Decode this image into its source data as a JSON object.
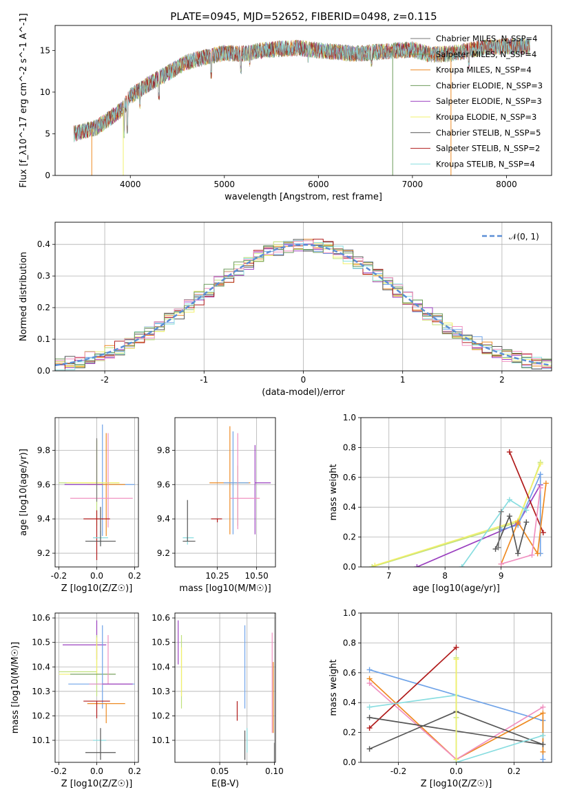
{
  "figure": {
    "title": "PLATE=0945, MJD=52652, FIBERID=0498, z=0.115"
  },
  "colors": {
    "c1": "#6fa3e8",
    "c2": "#ee8a22",
    "c3": "#bfe07a",
    "c4": "#9a3fbf",
    "c5": "#f2f06b",
    "c6": "#555555",
    "c7": "#b01a1a",
    "c8": "#88dde0",
    "c9": "#f090c0",
    "c10": "#6b9a5a",
    "c11": "#777777",
    "norm": "#5b8ed6",
    "grid": "#b0b0b0"
  },
  "chart_data": [
    {
      "id": "spectrum",
      "type": "line",
      "xlabel": "wavelength [Angstrom, rest frame]",
      "ylabel": "Flux [f_λ10^-17 erg cm^-2 s^-1 A^-1]",
      "xlim": [
        3200,
        8480
      ],
      "ylim": [
        0,
        18
      ],
      "xticks": [
        4000,
        5000,
        6000,
        7000,
        8000
      ],
      "yticks": [
        0,
        5,
        10,
        15
      ],
      "grid": false,
      "legend_position": "right",
      "legend": [
        {
          "name": "Chabrier MILES, N_SSP=4",
          "color_key": "c11"
        },
        {
          "name": "Salpeter MILES, N_SSP=4",
          "color_key": "c10"
        },
        {
          "name": "Kroupa MILES, N_SSP=4",
          "color_key": "c2"
        },
        {
          "name": "Chabrier ELODIE, N_SSP=3",
          "color_key": "c10"
        },
        {
          "name": "Salpeter ELODIE, N_SSP=3",
          "color_key": "c4"
        },
        {
          "name": "Kroupa ELODIE, N_SSP=3",
          "color_key": "c5"
        },
        {
          "name": "Chabrier STELIB, N_SSP=5",
          "color_key": "c6"
        },
        {
          "name": "Salpeter STELIB, N_SSP=2",
          "color_key": "c7"
        },
        {
          "name": "Kroupa STELIB, N_SSP=4",
          "color_key": "c8"
        }
      ],
      "continuum_points": [
        [
          3400,
          5.0
        ],
        [
          3500,
          5.3
        ],
        [
          3650,
          5.8
        ],
        [
          3800,
          7.0
        ],
        [
          3920,
          8.0
        ],
        [
          4000,
          9.5
        ],
        [
          4200,
          11.0
        ],
        [
          4400,
          12.3
        ],
        [
          4600,
          13.6
        ],
        [
          4800,
          14.2
        ],
        [
          5000,
          14.7
        ],
        [
          5200,
          14.6
        ],
        [
          5400,
          15.0
        ],
        [
          5600,
          15.2
        ],
        [
          5800,
          15.3
        ],
        [
          6000,
          15.0
        ],
        [
          6200,
          14.8
        ],
        [
          6400,
          14.6
        ],
        [
          6600,
          14.8
        ],
        [
          6800,
          15.0
        ],
        [
          7000,
          15.1
        ],
        [
          7200,
          14.5
        ],
        [
          7400,
          14.6
        ],
        [
          7600,
          15.0
        ],
        [
          7800,
          15.4
        ],
        [
          8000,
          15.5
        ],
        [
          8250,
          15.5
        ]
      ],
      "absorption_features": [
        [
          3934,
          4.5
        ],
        [
          3969,
          5.0
        ],
        [
          4102,
          8.0
        ],
        [
          4304,
          9.0
        ],
        [
          4861,
          11.6
        ],
        [
          5175,
          12.2
        ],
        [
          5270,
          13.0
        ],
        [
          5890,
          13.5
        ],
        [
          6563,
          13.0
        ],
        [
          7600,
          12.8
        ]
      ]
    },
    {
      "id": "residual-histogram",
      "type": "area",
      "xlabel": "(data-model)/error",
      "ylabel": "Normed distribution",
      "xlim": [
        -2.5,
        2.5
      ],
      "ylim": [
        0,
        0.47
      ],
      "xticks": [
        -2,
        -1,
        0,
        1,
        2
      ],
      "yticks": [
        0.0,
        0.1,
        0.2,
        0.3,
        0.4
      ],
      "grid": true,
      "legend": [
        {
          "name": "𝒩(0, 1)",
          "color_key": "norm"
        }
      ],
      "legend_position": "top-right"
    },
    {
      "id": "age-vs-Z",
      "type": "scatter",
      "xlabel": "Z [log10(Z/Z☉)]",
      "ylabel": "age  [log10(age/yr)]",
      "xlim": [
        -0.22,
        0.22
      ],
      "ylim": [
        9.12,
        9.99
      ],
      "xticks": [
        -0.2,
        0.0,
        0.2
      ],
      "yticks": [
        9.2,
        9.4,
        9.6,
        9.8
      ],
      "grid": true,
      "points": [
        {
          "x": 0.03,
          "y": 9.6,
          "xerr": [
            0.2,
            0.17
          ],
          "yerr": [
            0.3,
            0.35
          ],
          "c": "c1"
        },
        {
          "x": 0.05,
          "y": 9.6,
          "xerr": [
            0.1,
            0.1
          ],
          "yerr": [
            0.3,
            0.3
          ],
          "c": "c2"
        },
        {
          "x": 0.0,
          "y": 9.61,
          "xerr": [
            0.2,
            0.12
          ],
          "yerr": [
            0.25,
            0.25
          ],
          "c": "c3"
        },
        {
          "x": 0.0,
          "y": 9.61,
          "xerr": [
            0.16,
            0.12
          ],
          "yerr": [
            0.0,
            0.25
          ],
          "c": "c5"
        },
        {
          "x": 0.03,
          "y": 9.6,
          "xerr": [
            0.2,
            0.0
          ],
          "yerr": [
            0.0,
            0.0
          ],
          "c": "c4"
        },
        {
          "x": 0.06,
          "y": 9.52,
          "xerr": [
            0.2,
            0.13
          ],
          "yerr": [
            0.17,
            0.38
          ],
          "c": "c9"
        },
        {
          "x": 0.0,
          "y": 9.4,
          "xerr": [
            0.07,
            0.07
          ],
          "yerr": [
            0.24,
            0.05
          ],
          "c": "c7"
        },
        {
          "x": 0.02,
          "y": 9.29,
          "xerr": [
            0.04,
            0.04
          ],
          "yerr": [
            0.04,
            0.04
          ],
          "c": "c8"
        },
        {
          "x": 0.02,
          "y": 9.27,
          "xerr": [
            0.08,
            0.08
          ],
          "yerr": [
            0.03,
            0.2
          ],
          "c": "c6"
        },
        {
          "x": 0.0,
          "y": 9.5,
          "xerr": [
            0.0,
            0.0
          ],
          "yerr": [
            0.0,
            0.37
          ],
          "c": "c11"
        }
      ]
    },
    {
      "id": "age-vs-mass",
      "type": "scatter",
      "xlabel": "mass [log10(M/M☉)]",
      "ylabel": "",
      "xlim": [
        9.98,
        10.62
      ],
      "ylim": [
        9.12,
        9.99
      ],
      "xticks": [
        10.25,
        10.5
      ],
      "yticks": [
        9.2,
        9.4,
        9.6,
        9.8
      ],
      "grid": true,
      "points": [
        {
          "x": 10.33,
          "y": 9.61,
          "xerr": [
            0.13,
            0.13
          ],
          "yerr": [
            0.3,
            0.33
          ],
          "c": "c2"
        },
        {
          "x": 10.38,
          "y": 9.61,
          "xerr": [
            0.02,
            0.05
          ],
          "yerr": [
            0.25,
            0.1
          ],
          "c": "c3"
        },
        {
          "x": 10.49,
          "y": 9.61,
          "xerr": [
            0.0,
            0.1
          ],
          "yerr": [
            0.3,
            0.22
          ],
          "c": "c4"
        },
        {
          "x": 10.35,
          "y": 9.61,
          "xerr": [
            0.06,
            0.1
          ],
          "yerr": [
            0.3,
            0.3
          ],
          "c": "c1"
        },
        {
          "x": 10.38,
          "y": 9.52,
          "xerr": [
            0.05,
            0.14
          ],
          "yerr": [
            0.18,
            0.38
          ],
          "c": "c9"
        },
        {
          "x": 10.25,
          "y": 9.4,
          "xerr": [
            0.04,
            0.03
          ],
          "yerr": [
            0.02,
            0.0
          ],
          "c": "c7"
        },
        {
          "x": 10.06,
          "y": 9.29,
          "xerr": [
            0.03,
            0.04
          ],
          "yerr": [
            0.04,
            0.0
          ],
          "c": "c8"
        },
        {
          "x": 10.06,
          "y": 9.27,
          "xerr": [
            0.03,
            0.05
          ],
          "yerr": [
            0.0,
            0.24
          ],
          "c": "c6"
        }
      ]
    },
    {
      "id": "mass-weight-vs-age",
      "type": "line",
      "xlabel": "age  [log10(age/yr)]",
      "ylabel": "mass weight",
      "xlim": [
        6.5,
        9.9
      ],
      "ylim": [
        0,
        1
      ],
      "xticks": [
        7,
        8,
        9
      ],
      "yticks": [
        0.0,
        0.2,
        0.4,
        0.6,
        0.8,
        1.0
      ],
      "grid": true,
      "series": [
        {
          "c": "c3",
          "x": [
            6.7,
            9.3,
            9.7
          ],
          "y": [
            0.0,
            0.3,
            0.7
          ]
        },
        {
          "c": "c5",
          "x": [
            6.75,
            9.3,
            9.7
          ],
          "y": [
            0.01,
            0.31,
            0.69
          ]
        },
        {
          "c": "c4",
          "x": [
            7.5,
            9.3,
            9.7
          ],
          "y": [
            0.0,
            0.29,
            0.55
          ]
        },
        {
          "c": "c7",
          "x": [
            9.15,
            9.75
          ],
          "y": [
            0.77,
            0.23
          ]
        },
        {
          "c": "c1",
          "x": [
            9.0,
            9.3,
            9.7,
            9.7
          ],
          "y": [
            0.25,
            0.28,
            0.62,
            0.09
          ]
        },
        {
          "c": "c2",
          "x": [
            9.0,
            9.3,
            9.65,
            9.8
          ],
          "y": [
            0.02,
            0.3,
            0.09,
            0.56
          ]
        },
        {
          "c": "c8",
          "x": [
            8.3,
            9.15,
            9.45
          ],
          "y": [
            0.0,
            0.45,
            0.38
          ]
        },
        {
          "c": "c9",
          "x": [
            9.0,
            9.55,
            9.7
          ],
          "y": [
            0.02,
            0.08,
            0.53
          ]
        },
        {
          "c": "c6",
          "x": [
            8.9,
            9.15,
            9.3,
            9.45
          ],
          "y": [
            0.12,
            0.34,
            0.09,
            0.3
          ]
        },
        {
          "c": "c11",
          "x": [
            8.95,
            9.0
          ],
          "y": [
            0.13,
            0.37
          ]
        }
      ]
    },
    {
      "id": "mass-vs-Z",
      "type": "scatter",
      "xlabel": "Z [log10(Z/Z☉)]",
      "ylabel": "mass [log10(M/M☉)]",
      "xlim": [
        -0.22,
        0.22
      ],
      "ylim": [
        10.01,
        10.62
      ],
      "xticks": [
        -0.2,
        0.0,
        0.2
      ],
      "yticks": [
        10.1,
        10.2,
        10.3,
        10.4,
        10.5,
        10.6
      ],
      "grid": true,
      "points": [
        {
          "x": 0.0,
          "y": 10.49,
          "xerr": [
            0.18,
            0.05
          ],
          "yerr": [
            0.06,
            0.1
          ],
          "c": "c4"
        },
        {
          "x": 0.0,
          "y": 10.38,
          "xerr": [
            0.2,
            0.0
          ],
          "yerr": [
            0.1,
            0.15
          ],
          "c": "c3"
        },
        {
          "x": 0.0,
          "y": 10.37,
          "xerr": [
            0.2,
            0.1
          ],
          "yerr": [
            0.0,
            0.15
          ],
          "c": "c5"
        },
        {
          "x": 0.0,
          "y": 10.37,
          "xerr": [
            0.14,
            0.1
          ],
          "yerr": [
            0.0,
            0.0
          ],
          "c": "c10"
        },
        {
          "x": 0.03,
          "y": 10.33,
          "xerr": [
            0.18,
            0.17
          ],
          "yerr": [
            0.1,
            0.24
          ],
          "c": "c1"
        },
        {
          "x": 0.06,
          "y": 10.33,
          "xerr": [
            0.1,
            0.12
          ],
          "yerr": [
            0.0,
            0.2
          ],
          "c": "c9"
        },
        {
          "x": 0.03,
          "y": 10.33,
          "xerr": [
            0.0,
            0.16
          ],
          "yerr": [
            0.0,
            0.0
          ],
          "c": "c4"
        },
        {
          "x": 0.05,
          "y": 10.25,
          "xerr": [
            0.1,
            0.1
          ],
          "yerr": [
            0.08,
            0.0
          ],
          "c": "c2"
        },
        {
          "x": 0.0,
          "y": 10.26,
          "xerr": [
            0.07,
            0.07
          ],
          "yerr": [
            0.07,
            0.0
          ],
          "c": "c7"
        },
        {
          "x": 0.02,
          "y": 10.1,
          "xerr": [
            0.04,
            0.03
          ],
          "yerr": [
            0.04,
            0.0
          ],
          "c": "c8"
        },
        {
          "x": 0.02,
          "y": 10.05,
          "xerr": [
            0.08,
            0.08
          ],
          "yerr": [
            0.03,
            0.1
          ],
          "c": "c6"
        }
      ]
    },
    {
      "id": "mass-vs-ebv",
      "type": "scatter",
      "xlabel": "E(B-V)",
      "ylabel": "",
      "xlim": [
        0.009,
        0.101
      ],
      "ylim": [
        10.01,
        10.62
      ],
      "xticks": [
        0.05,
        0.075,
        0.1
      ],
      "xtick_labels": [
        "0.05",
        "",
        "0.10"
      ],
      "extra_xtick_labels": [
        "0.05",
        "0.10"
      ],
      "xtick_positions": [
        0.05,
        0.1
      ],
      "mid_tick_label": "",
      "yticks": [
        10.1,
        10.2,
        10.3,
        10.4,
        10.5,
        10.6
      ],
      "grid": true,
      "points": [
        {
          "x": 0.012,
          "y": 10.5,
          "yerr": [
            0.09,
            0.09
          ],
          "c": "c4"
        },
        {
          "x": 0.015,
          "y": 10.38,
          "yerr": [
            0.15,
            0.15
          ],
          "c": "c3"
        },
        {
          "x": 0.015,
          "y": 10.38,
          "yerr": [
            0.1,
            0.1
          ],
          "c": "c5"
        },
        {
          "x": 0.073,
          "y": 10.35,
          "yerr": [
            0.12,
            0.22
          ],
          "c": "c1"
        },
        {
          "x": 0.098,
          "y": 10.33,
          "yerr": [
            0.2,
            0.21
          ],
          "c": "c9"
        },
        {
          "x": 0.099,
          "y": 10.28,
          "yerr": [
            0.15,
            0.14
          ],
          "c": "c2"
        },
        {
          "x": 0.066,
          "y": 10.22,
          "yerr": [
            0.04,
            0.04
          ],
          "c": "c7"
        },
        {
          "x": 0.075,
          "y": 10.1,
          "yerr": [
            0.05,
            0.05
          ],
          "c": "c8"
        },
        {
          "x": 0.073,
          "y": 10.08,
          "yerr": [
            0.06,
            0.06
          ],
          "c": "c6"
        },
        {
          "x": 0.1,
          "y": 10.05,
          "yerr": [
            0.04,
            0.04
          ],
          "c": "c11"
        }
      ]
    },
    {
      "id": "mass-weight-vs-Z",
      "type": "line",
      "xlabel": "Z [log10(Z/Z☉)]",
      "ylabel": "mass weight",
      "xlim": [
        -0.33,
        0.33
      ],
      "ylim": [
        0,
        1
      ],
      "xticks": [
        -0.2,
        0.0,
        0.2
      ],
      "yticks": [
        0.0,
        0.2,
        0.4,
        0.6,
        0.8,
        1.0
      ],
      "grid": true,
      "series": [
        {
          "c": "c1",
          "x": [
            -0.3,
            0.3,
            0.3
          ],
          "y": [
            0.62,
            0.28,
            0.02
          ]
        },
        {
          "c": "c2",
          "x": [
            -0.3,
            0.0,
            0.3,
            0.3
          ],
          "y": [
            0.56,
            0.02,
            0.33,
            0.07
          ]
        },
        {
          "c": "c9",
          "x": [
            -0.3,
            0.0,
            0.3
          ],
          "y": [
            0.53,
            0.02,
            0.37
          ]
        },
        {
          "c": "c7",
          "x": [
            -0.3,
            0.0
          ],
          "y": [
            0.23,
            0.77
          ]
        },
        {
          "c": "c6",
          "x": [
            -0.3,
            0.0,
            0.3,
            -0.3
          ],
          "y": [
            0.09,
            0.34,
            0.12,
            0.3
          ]
        },
        {
          "c": "c8",
          "x": [
            -0.3,
            0.0,
            0.0,
            0.3
          ],
          "y": [
            0.37,
            0.45,
            0.0,
            0.18
          ]
        },
        {
          "c": "c3",
          "x": [
            0.0,
            0.0
          ],
          "y": [
            0.7,
            0.3
          ]
        },
        {
          "c": "c5",
          "x": [
            0.0,
            0.0
          ],
          "y": [
            0.69,
            0.02
          ]
        }
      ]
    }
  ]
}
